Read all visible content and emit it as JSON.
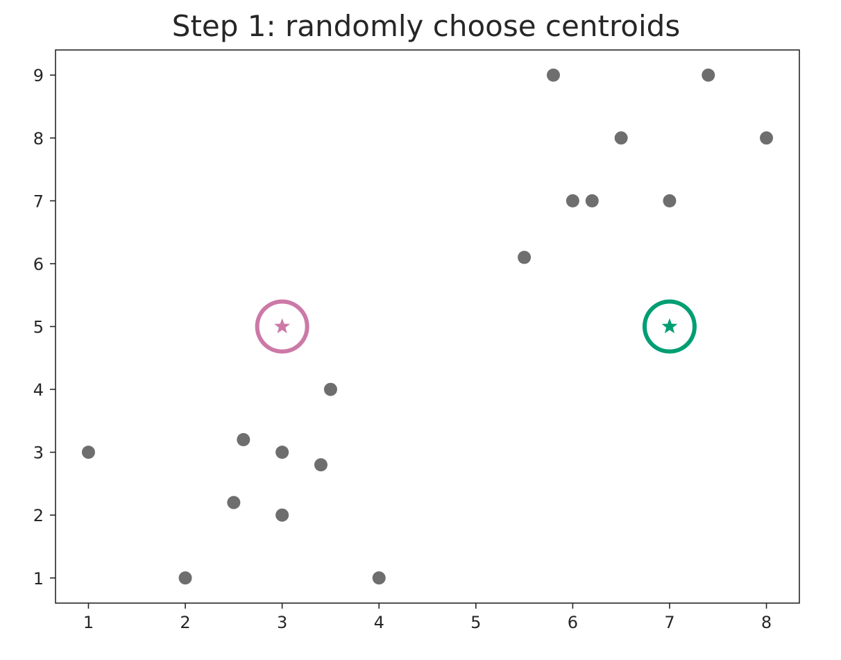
{
  "chart_data": {
    "type": "scatter",
    "title": "Step 1: randomly choose centroids",
    "xlabel": "",
    "ylabel": "",
    "xlim": [
      0.66,
      8.34
    ],
    "ylim": [
      0.6,
      9.4
    ],
    "xticks": [
      1,
      2,
      3,
      4,
      5,
      6,
      7,
      8
    ],
    "yticks": [
      1,
      2,
      3,
      4,
      5,
      6,
      7,
      8,
      9
    ],
    "grid": false,
    "series": [
      {
        "marker": "circle",
        "color": "#6e6e6e",
        "points": [
          {
            "x": 1,
            "y": 3
          },
          {
            "x": 2,
            "y": 1
          },
          {
            "x": 2.5,
            "y": 2.2
          },
          {
            "x": 2.6,
            "y": 3.2
          },
          {
            "x": 3,
            "y": 2
          },
          {
            "x": 3,
            "y": 3
          },
          {
            "x": 3.4,
            "y": 2.8
          },
          {
            "x": 3.5,
            "y": 4
          },
          {
            "x": 4,
            "y": 1
          },
          {
            "x": 5.5,
            "y": 6.1
          },
          {
            "x": 5.8,
            "y": 9
          },
          {
            "x": 6,
            "y": 7
          },
          {
            "x": 6.2,
            "y": 7
          },
          {
            "x": 6.5,
            "y": 8
          },
          {
            "x": 7,
            "y": 7
          },
          {
            "x": 7.4,
            "y": 9
          },
          {
            "x": 8,
            "y": 8
          }
        ]
      },
      {
        "marker": "star-in-ring",
        "color": "#cc79a7",
        "points": [
          {
            "x": 3,
            "y": 5
          }
        ]
      },
      {
        "marker": "star-in-ring",
        "color": "#009e73",
        "points": [
          {
            "x": 7,
            "y": 5
          }
        ]
      }
    ]
  }
}
